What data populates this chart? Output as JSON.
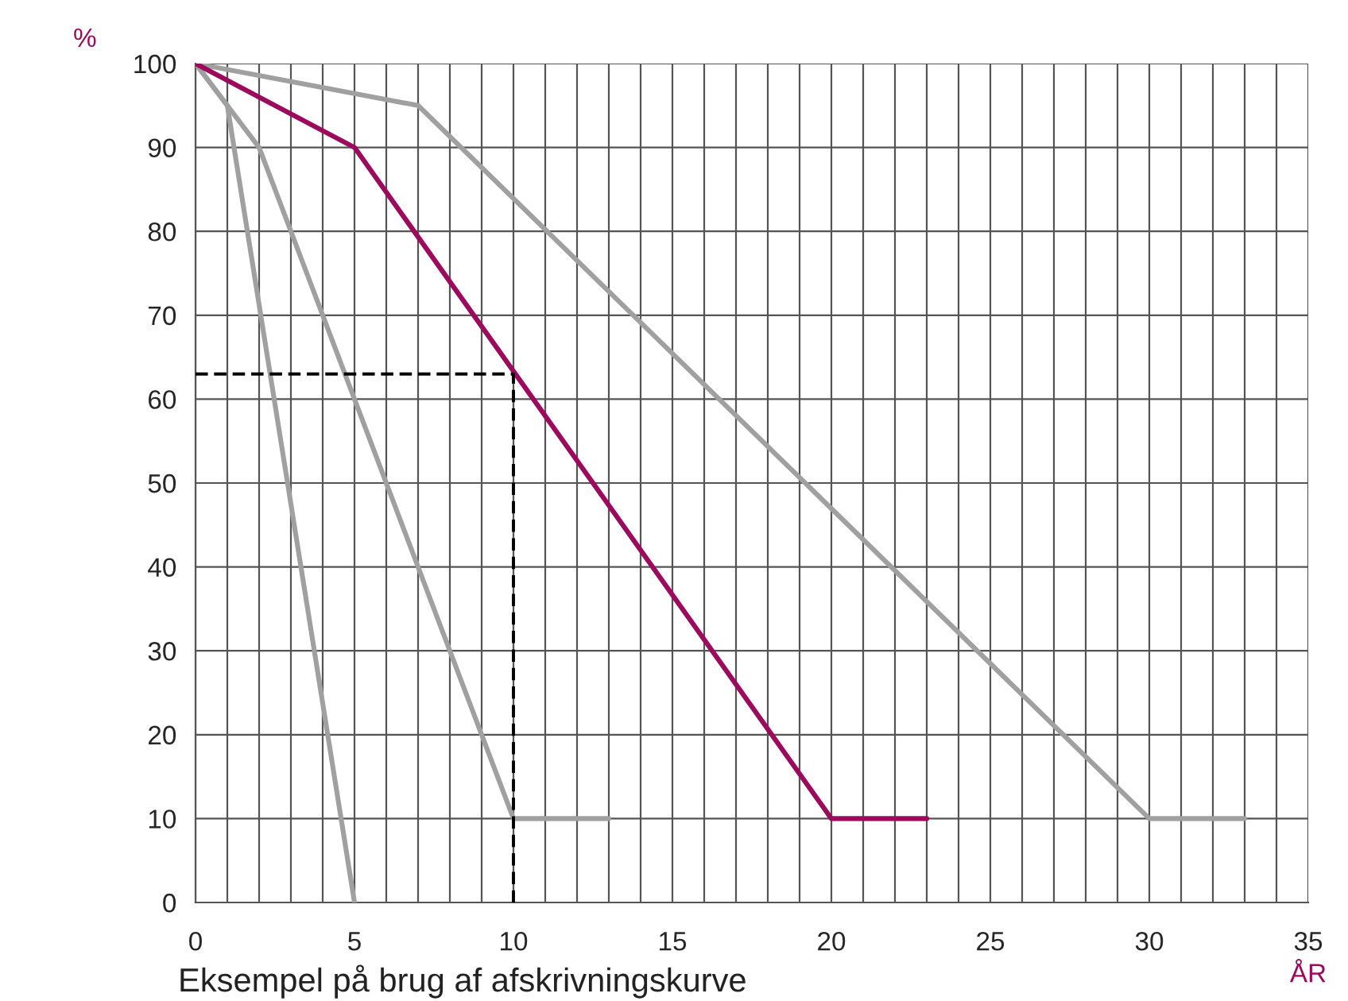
{
  "chart_data": {
    "type": "line",
    "xlabel": "ÅR",
    "ylabel": "%",
    "annotations": [
      "Eksempel på brug af afskrivningskurve"
    ],
    "series": [
      {
        "x": [
          0,
          1,
          5
        ],
        "values": [
          100,
          95,
          0
        ],
        "color": "#a0a0a0"
      },
      {
        "x": [
          0,
          2,
          10,
          13
        ],
        "values": [
          100,
          90,
          10,
          10
        ],
        "color": "#a0a0a0"
      },
      {
        "x": [
          0,
          7,
          30,
          33
        ],
        "values": [
          100,
          95,
          10,
          10
        ],
        "color": "#a0a0a0"
      },
      {
        "x": [
          0,
          5,
          20,
          23
        ],
        "values": [
          100,
          90,
          10,
          10
        ],
        "color": "#9b0a5c"
      },
      {
        "x": [
          0,
          10,
          10
        ],
        "values": [
          63,
          63,
          0
        ],
        "color": "#000000",
        "line_style": "dashed"
      }
    ],
    "xlim": [
      0,
      35
    ],
    "ylim": [
      0,
      100
    ],
    "xticks": [
      0,
      {
        "value": 1,
        "label": null
      },
      {
        "value": 2,
        "label": null
      },
      {
        "value": 3,
        "label": null
      },
      {
        "value": 4,
        "label": null
      },
      5,
      {
        "value": 6,
        "label": null
      },
      {
        "value": 7,
        "label": null
      },
      {
        "value": 8,
        "label": null
      },
      {
        "value": 9,
        "label": null
      },
      10,
      {
        "value": 11,
        "label": null
      },
      {
        "value": 12,
        "label": null
      },
      {
        "value": 13,
        "label": null
      },
      {
        "value": 14,
        "label": null
      },
      15,
      {
        "value": 16,
        "label": null
      },
      {
        "value": 17,
        "label": null
      },
      {
        "value": 18,
        "label": null
      },
      {
        "value": 19,
        "label": null
      },
      20,
      {
        "value": 21,
        "label": null
      },
      {
        "value": 22,
        "label": null
      },
      {
        "value": 23,
        "label": null
      },
      {
        "value": 24,
        "label": null
      },
      25,
      {
        "value": 26,
        "label": null
      },
      {
        "value": 27,
        "label": null
      },
      {
        "value": 28,
        "label": null
      },
      {
        "value": 29,
        "label": null
      },
      30,
      {
        "value": 31,
        "label": null
      },
      {
        "value": 32,
        "label": null
      },
      {
        "value": 33,
        "label": null
      },
      {
        "value": 34,
        "label": null
      },
      35
    ],
    "yticks": [
      0,
      10,
      20,
      30,
      40,
      50,
      60,
      70,
      80,
      90,
      100
    ],
    "grid": true,
    "legend": false,
    "marker": "none",
    "line_style": "solid"
  }
}
